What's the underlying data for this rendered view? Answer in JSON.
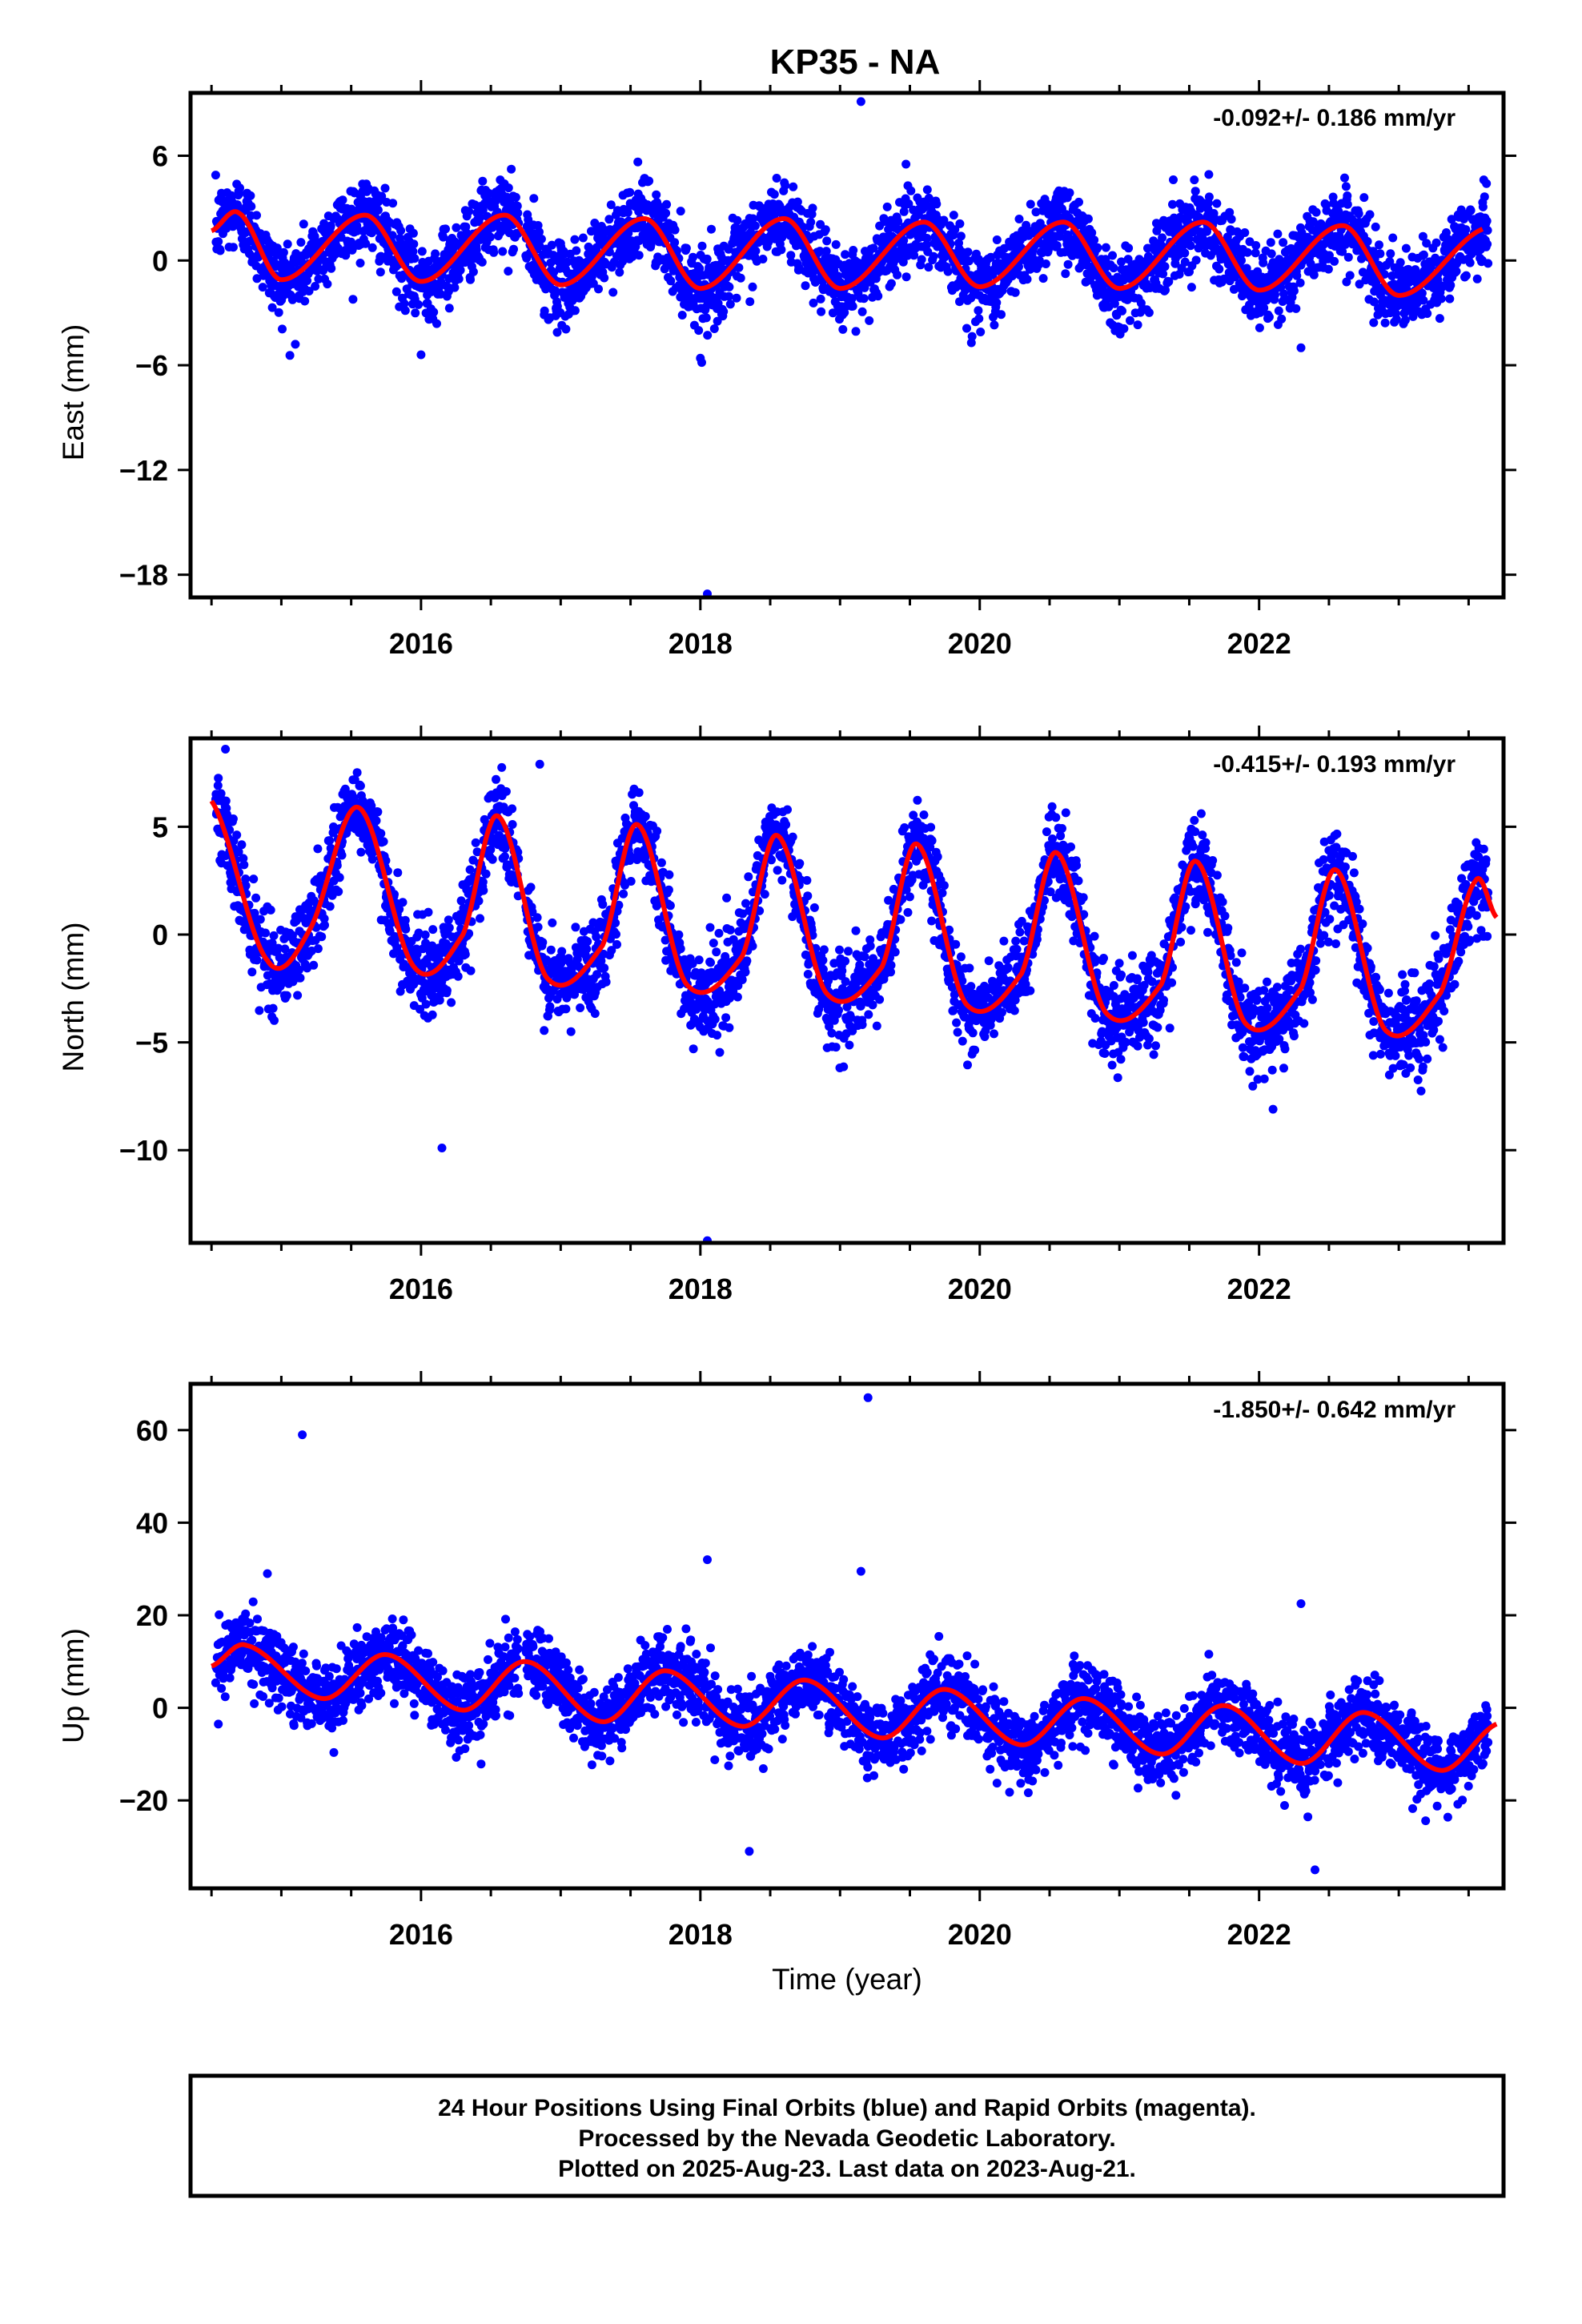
{
  "title": "KP35 - NA",
  "xlabel": "Time (year)",
  "footer": {
    "lines": [
      "24 Hour Positions Using Final Orbits (blue) and Rapid Orbits (magenta).",
      "Processed by the Nevada Geodetic Laboratory.",
      "Plotted on 2025-Aug-23. Last data on 2023-Aug-21."
    ]
  },
  "colors": {
    "points": "#0000ff",
    "fit": "#ff0000",
    "frame": "#000000"
  },
  "chart_data": [
    {
      "type": "scatter",
      "name": "east",
      "ylabel": "East (mm)",
      "rate": "-0.092+/- 0.186 mm/yr",
      "xlim": [
        2014.35,
        2023.75
      ],
      "ylim": [
        -19.3,
        9.6
      ],
      "xticks": [
        2016,
        2018,
        2020,
        2022
      ],
      "yticks": [
        -18,
        -12,
        -6,
        0,
        6
      ],
      "grid": false,
      "seasonal": {
        "t0": 2014.5,
        "offset": 0.8,
        "trend": -0.092,
        "a1": 1.9,
        "a2": 0.35,
        "phase": 0.23,
        "noise": 1.1
      },
      "fit_knots": {
        "x": [
          2014.5,
          2014.7,
          2015.0,
          2015.6,
          2016.0,
          2016.6,
          2017.0,
          2017.6,
          2018.0,
          2018.6,
          2019.0,
          2019.6,
          2020.0,
          2020.6,
          2021.0,
          2021.6,
          2022.0,
          2022.6,
          2023.0,
          2023.6
        ],
        "y": [
          1.7,
          2.7,
          -1.1,
          2.6,
          -1.2,
          2.6,
          -1.4,
          2.4,
          -1.6,
          2.4,
          -1.6,
          2.2,
          -1.5,
          2.2,
          -1.6,
          2.2,
          -1.7,
          2.0,
          -2.0,
          1.8
        ]
      },
      "outliers": {
        "x": [
          2019.15,
          2018.05,
          2018.0,
          2015.1,
          2016.0,
          2022.3
        ],
        "y": [
          9.1,
          -19.1,
          -5.6,
          -4.8,
          -5.4,
          -5.0
        ]
      }
    },
    {
      "type": "scatter",
      "name": "north",
      "ylabel": "North (mm)",
      "rate": "-0.415+/- 0.193 mm/yr",
      "xlim": [
        2014.35,
        2023.75
      ],
      "ylim": [
        -14.3,
        9.1
      ],
      "xticks": [
        2016,
        2018,
        2020,
        2022
      ],
      "yticks": [
        -10,
        -5,
        0,
        5
      ],
      "grid": false,
      "seasonal": {
        "t0": 2014.5,
        "offset": 2.2,
        "trend": -0.415,
        "a1": 3.6,
        "a2": 0.9,
        "phase": 0.0,
        "noise": 1.0
      },
      "fit_knots": {
        "x": [
          2014.5,
          2014.9,
          2015.2,
          2015.55,
          2015.95,
          2016.3,
          2016.55,
          2016.9,
          2017.3,
          2017.55,
          2017.9,
          2018.3,
          2018.55,
          2018.9,
          2019.3,
          2019.55,
          2019.9,
          2020.3,
          2020.55,
          2020.9,
          2021.3,
          2021.55,
          2021.9,
          2022.3,
          2022.55,
          2022.9,
          2023.3,
          2023.55,
          2023.7
        ],
        "y": [
          6.2,
          -1.2,
          0.2,
          5.9,
          -1.5,
          0.0,
          5.5,
          -2.0,
          -0.5,
          5.1,
          -2.3,
          -1.0,
          4.6,
          -2.7,
          -1.5,
          4.2,
          -3.2,
          -1.8,
          3.8,
          -3.6,
          -2.3,
          3.4,
          -4.1,
          -2.5,
          3.0,
          -4.4,
          -2.7,
          2.5,
          0.8
        ]
      },
      "outliers": {
        "x": [
          2016.15,
          2018.05,
          2022.1,
          2014.6,
          2016.85,
          2017.95
        ],
        "y": [
          -9.9,
          -14.2,
          -8.1,
          8.6,
          7.9,
          -5.3
        ]
      }
    },
    {
      "type": "scatter",
      "name": "up",
      "ylabel": "Up (mm)",
      "rate": "-1.850+/- 0.642 mm/yr",
      "xlim": [
        2014.35,
        2023.75
      ],
      "ylim": [
        -39,
        70
      ],
      "xticks": [
        2016,
        2018,
        2020,
        2022
      ],
      "yticks": [
        -20,
        0,
        20,
        40,
        60
      ],
      "grid": false,
      "seasonal": {
        "t0": 2014.5,
        "offset": 8.5,
        "trend": -1.85,
        "a1": 6.5,
        "a2": 1.0,
        "phase": 0.1,
        "noise": 3.8
      },
      "fit_knots": {
        "x": [
          2014.5,
          2014.75,
          2015.3,
          2015.75,
          2016.3,
          2016.75,
          2017.3,
          2017.75,
          2018.3,
          2018.75,
          2019.3,
          2019.75,
          2020.3,
          2020.75,
          2021.3,
          2021.75,
          2022.3,
          2022.75,
          2023.3,
          2023.7
        ],
        "y": [
          9,
          13.5,
          2,
          11.5,
          -0.5,
          10,
          -3,
          8,
          -4,
          6,
          -6.5,
          4,
          -8,
          2,
          -10,
          0.5,
          -12,
          -1,
          -13.5,
          -3.5
        ]
      },
      "outliers": {
        "x": [
          2015.15,
          2019.2,
          2018.05,
          2014.9,
          2019.15,
          2018.35,
          2022.3,
          2022.4
        ],
        "y": [
          59,
          67,
          32,
          29,
          29.5,
          -31,
          22.5,
          -35
        ]
      }
    }
  ]
}
